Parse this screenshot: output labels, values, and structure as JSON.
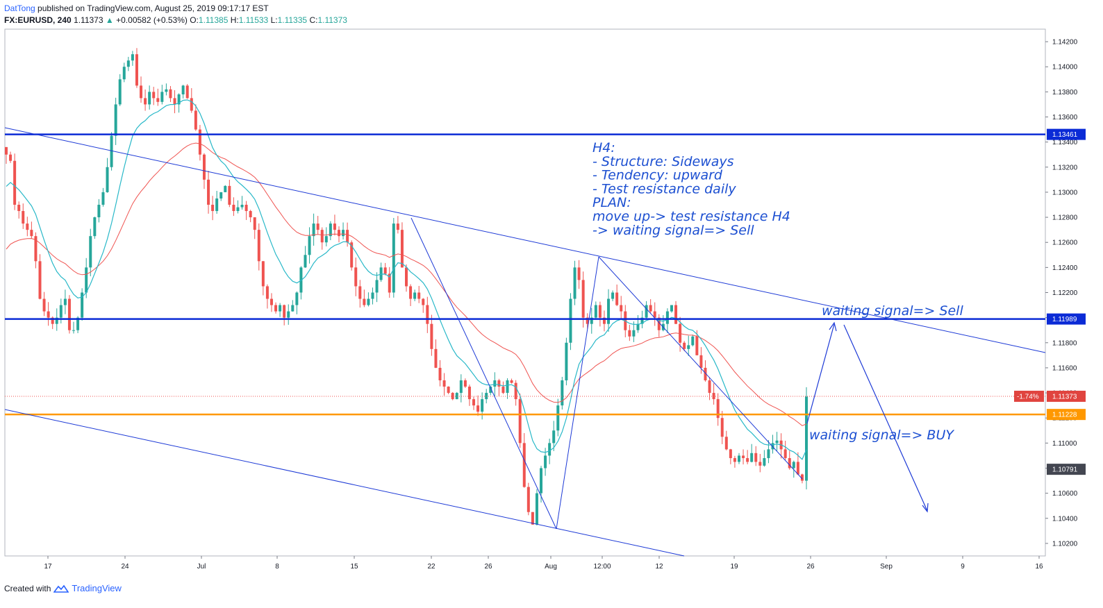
{
  "header": {
    "author": "DatTong",
    "published": "published on TradingView.com, August 25, 2019 09:17:17 EST",
    "symbol": "FX:EURUSD, 240",
    "last": "1.11373",
    "change": "+0.00582 (+0.53%)",
    "o_label": "O:",
    "o": "1.11385",
    "h_label": "H:",
    "h": "1.11533",
    "l_label": "L:",
    "l": "1.11335",
    "c_label": "C:",
    "c": "1.11373"
  },
  "footer": {
    "created": "Created with",
    "brand": "TradingView"
  },
  "colors": {
    "up": "#26a69a",
    "down": "#ef5350",
    "trend": "#1c39d6",
    "level": "#0b2bd6",
    "orange": "#ff9800",
    "ema_fast": "#28b8c8",
    "ema_slow": "#ef5350"
  },
  "chart_data": {
    "type": "candlestick",
    "ylim": [
      1.101,
      1.143
    ],
    "y_ticks": [
      "1.14200",
      "1.14000",
      "1.13800",
      "1.13600",
      "1.13400",
      "1.13200",
      "1.13000",
      "1.12800",
      "1.12600",
      "1.12400",
      "1.12200",
      "1.12000",
      "1.11800",
      "1.11600",
      "1.11400",
      "1.11200",
      "1.11000",
      "1.10800",
      "1.10600",
      "1.10400",
      "1.10200"
    ],
    "x_ticks": [
      "17",
      "24",
      "Jul",
      "8",
      "15",
      "22",
      "26",
      "Aug",
      "12:00",
      "12",
      "19",
      "26",
      "Sep",
      "9",
      "16"
    ],
    "levels": [
      {
        "price": 1.13461,
        "label": "1.13461",
        "color": "#0b2bd6"
      },
      {
        "price": 1.11989,
        "label": "1.11989",
        "color": "#0b2bd6"
      },
      {
        "price": 1.11228,
        "label": "1.11228",
        "color": "#ff9800"
      }
    ],
    "current_price": {
      "price": 1.11373,
      "label": "1.11373",
      "pct": "-1.74%"
    },
    "ema_tag": {
      "price": 1.10791,
      "label": "1.10791"
    },
    "annotations": {
      "box": [
        "H4:",
        "- Structure: Sideways",
        "- Tendency: upward",
        "- Test resistance daily",
        "PLAN:",
        "move up-> test resistance H4",
        "-> waiting signal=> Sell"
      ],
      "sell": "waiting signal=> Sell",
      "buy": "waiting signal=> BUY"
    },
    "close_series": [
      1.133,
      1.1325,
      1.129,
      1.1285,
      1.1275,
      1.127,
      1.1265,
      1.1245,
      1.1215,
      1.1205,
      1.12,
      1.1195,
      1.12,
      1.121,
      1.1215,
      1.119,
      1.119,
      1.12,
      1.122,
      1.124,
      1.1265,
      1.128,
      1.129,
      1.13,
      1.132,
      1.1345,
      1.137,
      1.139,
      1.14,
      1.1405,
      1.141,
      1.1385,
      1.1375,
      1.137,
      1.138,
      1.1375,
      1.1372,
      1.138,
      1.1382,
      1.1375,
      1.137,
      1.1378,
      1.1385,
      1.1375,
      1.1365,
      1.135,
      1.133,
      1.131,
      1.129,
      1.1285,
      1.1295,
      1.13,
      1.1305,
      1.129,
      1.1285,
      1.1288,
      1.129,
      1.1285,
      1.128,
      1.127,
      1.1245,
      1.1225,
      1.1215,
      1.121,
      1.1205,
      1.121,
      1.12,
      1.1205,
      1.121,
      1.122,
      1.124,
      1.125,
      1.1265,
      1.1275,
      1.127,
      1.126,
      1.1265,
      1.1275,
      1.127,
      1.1265,
      1.127,
      1.126,
      1.124,
      1.1225,
      1.1215,
      1.121,
      1.1215,
      1.122,
      1.123,
      1.124,
      1.1235,
      1.122,
      1.1275,
      1.127,
      1.124,
      1.1225,
      1.1215,
      1.122,
      1.1215,
      1.121,
      1.1195,
      1.1175,
      1.116,
      1.115,
      1.1145,
      1.114,
      1.1135,
      1.114,
      1.115,
      1.1145,
      1.1135,
      1.113,
      1.1125,
      1.1135,
      1.114,
      1.1145,
      1.115,
      1.1145,
      1.114,
      1.115,
      1.1148,
      1.1135,
      1.11,
      1.1065,
      1.1045,
      1.1035,
      1.106,
      1.108,
      1.109,
      1.11,
      1.111,
      1.113,
      1.115,
      1.118,
      1.1215,
      1.124,
      1.123,
      1.12,
      1.1195,
      1.12,
      1.121,
      1.12,
      1.1195,
      1.1215,
      1.122,
      1.121,
      1.1205,
      1.119,
      1.1185,
      1.119,
      1.1195,
      1.12,
      1.121,
      1.1205,
      1.12,
      1.119,
      1.1195,
      1.1205,
      1.121,
      1.1195,
      1.118,
      1.1175,
      1.1178,
      1.1185,
      1.117,
      1.116,
      1.115,
      1.114,
      1.1135,
      1.112,
      1.1105,
      1.1095,
      1.1088,
      1.1085,
      1.109,
      1.1088,
      1.1085,
      1.1092,
      1.1085,
      1.1082,
      1.1088,
      1.1095,
      1.11,
      1.1102,
      1.1095,
      1.1088,
      1.108,
      1.1085,
      1.1075,
      1.107,
      1.1137
    ]
  }
}
